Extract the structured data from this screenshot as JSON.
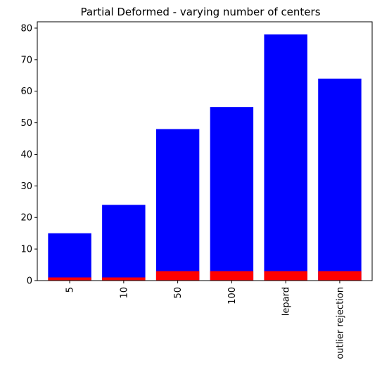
{
  "chart_data": {
    "type": "bar",
    "title": "Partial Deformed - varying number of centers",
    "xlabel": "",
    "ylabel": "",
    "categories": [
      "5",
      "10",
      "50",
      "100",
      "lepard",
      "outlier rejection"
    ],
    "series": [
      {
        "values": [
          15,
          24,
          48,
          55,
          78,
          64
        ],
        "color": "#0000ff"
      },
      {
        "values": [
          1,
          1,
          3,
          3,
          3,
          3
        ],
        "color": "#ff0000"
      }
    ],
    "ylim": [
      0,
      82
    ],
    "yticks": [
      0,
      10,
      20,
      30,
      40,
      50,
      60,
      70,
      80
    ],
    "grid": false,
    "legend": "none",
    "x_tick_rotation": "vertical"
  }
}
